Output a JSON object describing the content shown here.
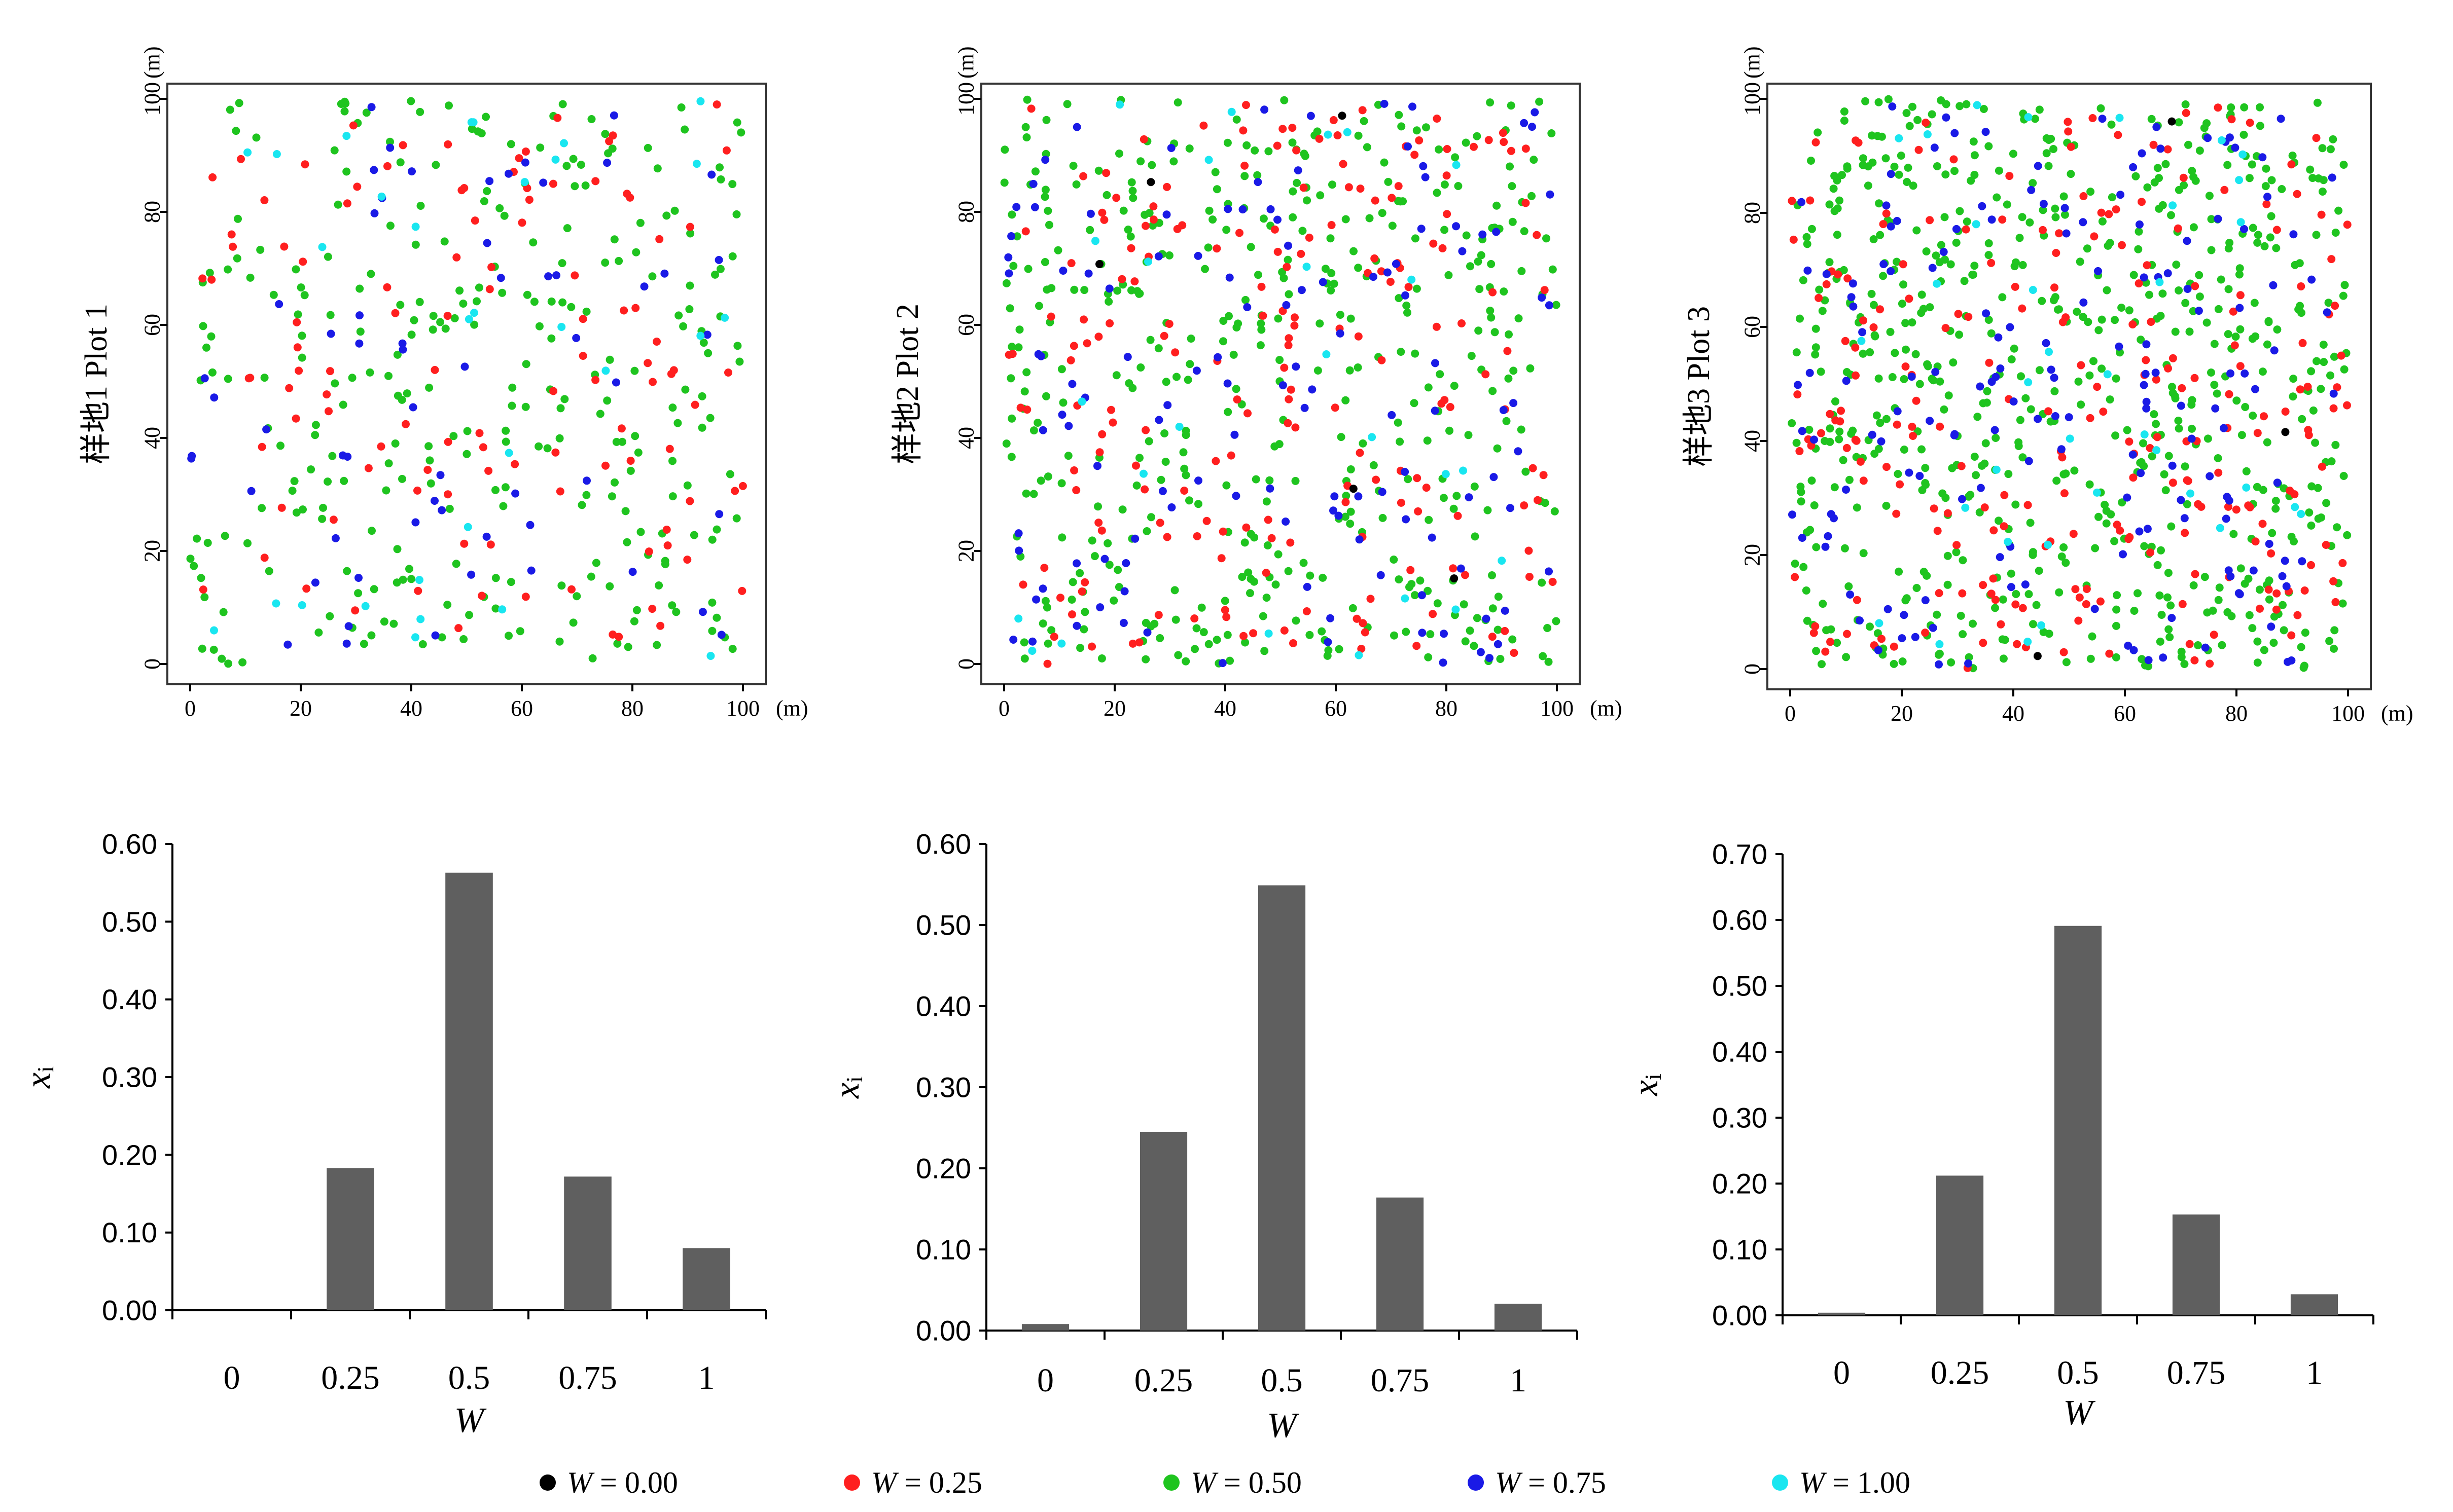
{
  "legend": {
    "label_prefix": "W",
    "items": [
      {
        "value_text": " = 0.00",
        "color": "#000000"
      },
      {
        "value_text": " = 0.25",
        "color": "#ff1f1f"
      },
      {
        "value_text": " = 0.50",
        "color": "#1fc41f"
      },
      {
        "value_text": " = 0.75",
        "color": "#1a1ae6"
      },
      {
        "value_text": " = 1.00",
        "color": "#19e6f0"
      }
    ]
  },
  "scatter_plots": [
    {
      "plot_label": "样地1  Plot 1",
      "x_unit": "(m)",
      "y_unit": "(m)",
      "xlim": [
        0,
        100
      ],
      "ylim": [
        0,
        100
      ],
      "ticks": [
        "0",
        "20",
        "40",
        "60",
        "80",
        "100"
      ],
      "point_counts": [
        0,
        110,
        280,
        60,
        30
      ],
      "seed": 11
    },
    {
      "plot_label": "样地2  Plot 2",
      "x_unit": "(m)",
      "y_unit": "(m)",
      "xlim": [
        0,
        100
      ],
      "ylim": [
        0,
        100
      ],
      "ticks": [
        "0",
        "20",
        "40",
        "60",
        "80",
        "100"
      ],
      "point_counts": [
        5,
        190,
        420,
        125,
        25
      ],
      "seed": 23
    },
    {
      "plot_label": "样地3  Plot 3",
      "x_unit": "(m)",
      "y_unit": "(m)",
      "xlim": [
        0,
        100
      ],
      "ylim": [
        0,
        100
      ],
      "ticks": [
        "0",
        "20",
        "40",
        "60",
        "80",
        "100"
      ],
      "point_counts": [
        3,
        230,
        640,
        165,
        35
      ],
      "seed": 37
    }
  ],
  "chart_data": [
    {
      "type": "bar",
      "xlabel": "W",
      "ylabel": "x",
      "ylabel_sub": "i",
      "categories": [
        "0",
        "0.25",
        "0.5",
        "0.75",
        "1"
      ],
      "values": [
        0.0,
        0.183,
        0.563,
        0.172,
        0.08
      ],
      "ylim": [
        0,
        0.6
      ],
      "yticks": [
        "0.00",
        "0.10",
        "0.20",
        "0.30",
        "0.40",
        "0.50",
        "0.60"
      ]
    },
    {
      "type": "bar",
      "xlabel": "W",
      "ylabel": "x",
      "ylabel_sub": "i",
      "categories": [
        "0",
        "0.25",
        "0.5",
        "0.75",
        "1"
      ],
      "values": [
        0.008,
        0.245,
        0.549,
        0.164,
        0.033
      ],
      "ylim": [
        0,
        0.6
      ],
      "yticks": [
        "0.00",
        "0.10",
        "0.20",
        "0.30",
        "0.40",
        "0.50",
        "0.60"
      ]
    },
    {
      "type": "bar",
      "xlabel": "W",
      "ylabel": "x",
      "ylabel_sub": "i",
      "categories": [
        "0",
        "0.25",
        "0.5",
        "0.75",
        "1"
      ],
      "values": [
        0.004,
        0.212,
        0.591,
        0.153,
        0.032
      ],
      "ylim": [
        0,
        0.7
      ],
      "yticks": [
        "0.00",
        "0.10",
        "0.20",
        "0.30",
        "0.40",
        "0.50",
        "0.60",
        "0.70"
      ]
    }
  ]
}
